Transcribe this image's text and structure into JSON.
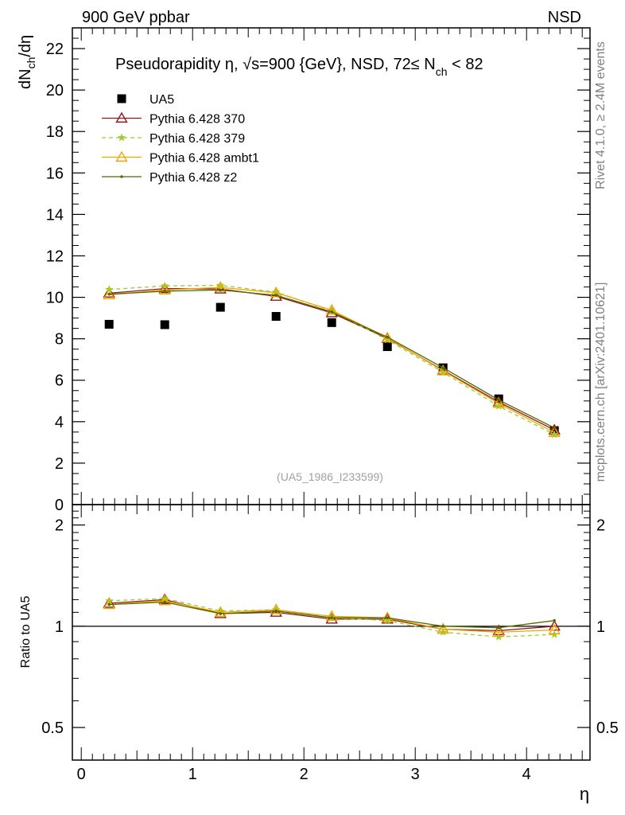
{
  "header": {
    "left": "900 GeV ppbar",
    "right": "NSD"
  },
  "side_labels": {
    "rivet": "Rivet 4.1.0, ≥ 2.4M events",
    "mcplots": "mcplots.cern.ch [arXiv:2401.10621]"
  },
  "plot_title": {
    "main": "Pseudorapidity η, √s=900 {GeV}, NSD, 72≤ N",
    "sub": "ch",
    "tail": " < 82"
  },
  "watermark": "(UA5_1986_I233599)",
  "axes": {
    "ylabel_main": {
      "a": "dN",
      "sub": "ch",
      "b": "/dη"
    },
    "ylabel_ratio": "Ratio to UA5",
    "xlabel": "η"
  },
  "colors": {
    "UA5": "#000000",
    "p370": "#8b1a1a",
    "p379": "#9acd32",
    "ambt1": "#f0a800",
    "z2": "#556b00"
  },
  "chart_data": [
    {
      "type": "line",
      "panel": "main",
      "xlim": [
        -0.08,
        4.57
      ],
      "ylim": [
        0,
        23
      ],
      "yticks": [
        0,
        2,
        4,
        6,
        8,
        10,
        12,
        14,
        16,
        18,
        20,
        22
      ],
      "xticks": [
        0,
        1,
        2,
        3,
        4
      ],
      "x": [
        0.25,
        0.75,
        1.25,
        1.75,
        2.25,
        2.75,
        3.25,
        3.75,
        4.25
      ],
      "series": [
        {
          "name": "UA5",
          "key": "UA5",
          "marker": "square",
          "values": [
            8.7,
            8.68,
            9.52,
            9.08,
            8.78,
            7.62,
            6.6,
            5.1,
            3.57
          ]
        },
        {
          "name": "Pythia 6.428 370",
          "key": "p370",
          "marker": "triangle-open",
          "dash": "solid",
          "values": [
            10.2,
            10.42,
            10.4,
            10.05,
            9.25,
            8.02,
            6.48,
            4.95,
            3.6
          ]
        },
        {
          "name": "Pythia 6.428 379",
          "key": "p379",
          "marker": "star",
          "dash": "dashed",
          "values": [
            10.38,
            10.55,
            10.58,
            10.25,
            9.35,
            7.95,
            6.38,
            4.75,
            3.38
          ]
        },
        {
          "name": "Pythia 6.428 ambt1",
          "key": "ambt1",
          "marker": "triangle-open",
          "dash": "solid",
          "values": [
            10.12,
            10.35,
            10.48,
            10.22,
            9.38,
            8.05,
            6.45,
            4.88,
            3.48
          ]
        },
        {
          "name": "Pythia 6.428 z2",
          "key": "z2",
          "marker": "dot",
          "dash": "solid",
          "values": [
            10.15,
            10.3,
            10.35,
            10.1,
            9.3,
            8.08,
            6.6,
            5.05,
            3.7
          ]
        }
      ]
    },
    {
      "type": "line",
      "panel": "ratio",
      "scale": "log",
      "xlim": [
        -0.08,
        4.57
      ],
      "ylim": [
        0.4,
        2.3
      ],
      "yticks": [
        0.5,
        1,
        2
      ],
      "ytick_labels": [
        "0.5",
        "1",
        "2"
      ],
      "xticks": [
        0,
        1,
        2,
        3,
        4
      ],
      "x": [
        0.25,
        0.75,
        1.25,
        1.75,
        2.25,
        2.75,
        3.25,
        3.75,
        4.25
      ],
      "series": [
        {
          "name": "Pythia 6.428 370",
          "key": "p370",
          "marker": "triangle-open",
          "dash": "solid",
          "values": [
            1.17,
            1.2,
            1.09,
            1.1,
            1.05,
            1.05,
            0.98,
            0.97,
            1.0
          ]
        },
        {
          "name": "Pythia 6.428 379",
          "key": "p379",
          "marker": "star",
          "dash": "dashed",
          "values": [
            1.19,
            1.21,
            1.11,
            1.12,
            1.06,
            1.04,
            0.96,
            0.93,
            0.945
          ]
        },
        {
          "name": "Pythia 6.428 ambt1",
          "key": "ambt1",
          "marker": "triangle-open",
          "dash": "solid",
          "values": [
            1.16,
            1.19,
            1.1,
            1.12,
            1.07,
            1.06,
            0.98,
            0.96,
            0.975
          ]
        },
        {
          "name": "Pythia 6.428 z2",
          "key": "z2",
          "marker": "dot",
          "dash": "solid",
          "values": [
            1.16,
            1.18,
            1.09,
            1.11,
            1.06,
            1.06,
            1.0,
            0.99,
            1.04
          ]
        }
      ]
    }
  ]
}
